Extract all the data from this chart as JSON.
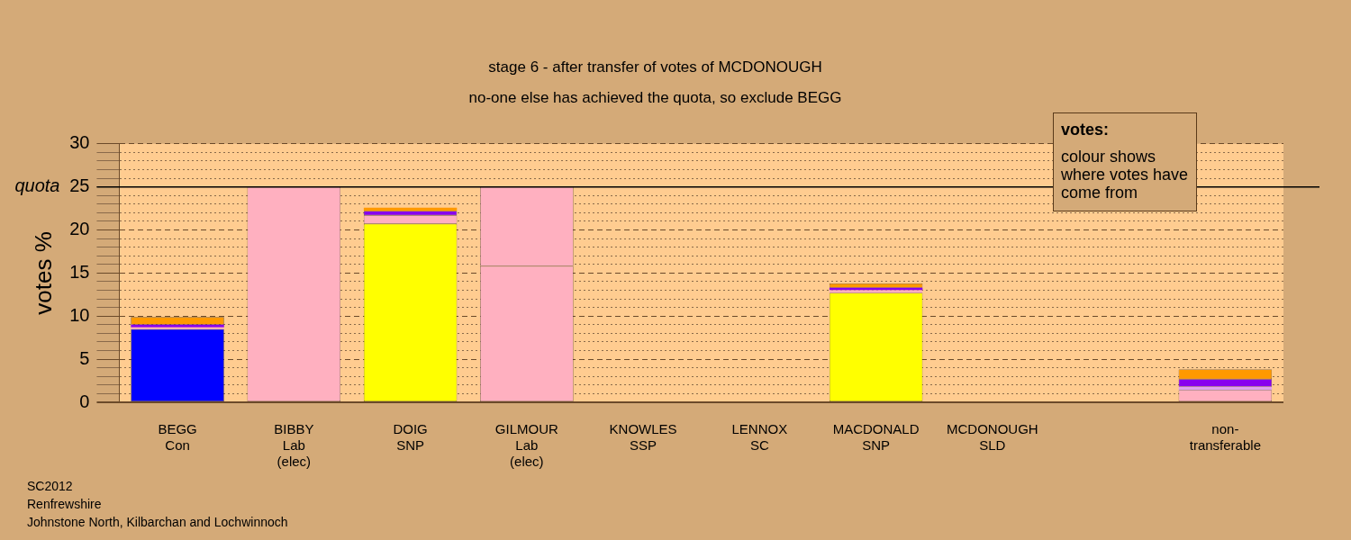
{
  "chart_data": {
    "type": "bar",
    "stacked": true,
    "title": "stage 6 - after transfer of votes of MCDONOUGH",
    "subtitle": "no-one else has achieved the quota, so exclude BEGG",
    "ylabel": "votes %",
    "categories": [
      "BEGG\nCon",
      "BIBBY\nLab\n(elec)",
      "DOIG\nSNP",
      "GILMOUR\nLab\n(elec)",
      "KNOWLES\nSSP",
      "LENNOX\nSC",
      "MACDONALD\nSNP",
      "MCDONOUGH\nSLD",
      null,
      "non-\ntransferable"
    ],
    "series": [
      {
        "color": "#0000ff",
        "values": [
          8.5,
          null,
          null,
          null,
          null,
          null,
          null,
          null,
          null,
          null
        ]
      },
      {
        "color": "#ffff00",
        "values": [
          null,
          null,
          20.7,
          null,
          null,
          null,
          12.7,
          null,
          null,
          null
        ]
      },
      {
        "color": "#ffb0c0",
        "values": [
          0.2,
          25.0,
          1.0,
          15.8,
          null,
          null,
          0.3,
          null,
          null,
          1.4
        ]
      },
      {
        "color": "#ffb0c0",
        "values": [
          null,
          null,
          null,
          9.2,
          null,
          null,
          null,
          null,
          null,
          null
        ]
      },
      {
        "color": "#e0a0f0",
        "values": [
          null,
          null,
          null,
          null,
          null,
          null,
          null,
          null,
          null,
          0.4
        ]
      },
      {
        "color": "#8800ee",
        "values": [
          0.3,
          null,
          0.5,
          null,
          null,
          null,
          0.3,
          null,
          null,
          0.9
        ]
      },
      {
        "color": "#ff9900",
        "values": [
          0.9,
          null,
          0.4,
          null,
          null,
          null,
          0.5,
          null,
          null,
          1.1
        ]
      }
    ],
    "ylim": [
      0,
      30
    ],
    "yticks": [
      0,
      {
        "value": 1,
        "label": null
      },
      {
        "value": 2,
        "label": null
      },
      {
        "value": 3,
        "label": null
      },
      {
        "value": 4,
        "label": null
      },
      5,
      {
        "value": 6,
        "label": null
      },
      {
        "value": 7,
        "label": null
      },
      {
        "value": 8,
        "label": null
      },
      {
        "value": 9,
        "label": null
      },
      10,
      {
        "value": 11,
        "label": null
      },
      {
        "value": 12,
        "label": null
      },
      {
        "value": 13,
        "label": null
      },
      {
        "value": 14,
        "label": null
      },
      15,
      {
        "value": 16,
        "label": null
      },
      {
        "value": 17,
        "label": null
      },
      {
        "value": 18,
        "label": null
      },
      {
        "value": 19,
        "label": null
      },
      20,
      {
        "value": 21,
        "label": null
      },
      {
        "value": 22,
        "label": null
      },
      {
        "value": 23,
        "label": null
      },
      {
        "value": 24,
        "label": null
      },
      25,
      {
        "value": 26,
        "label": null
      },
      {
        "value": 27,
        "label": null
      },
      {
        "value": 28,
        "label": null
      },
      {
        "value": 29,
        "label": null
      },
      30
    ],
    "ref_lines": [
      {
        "axis": "y",
        "value": 25,
        "label": "quota",
        "color": "#000000",
        "line_style": "solid"
      }
    ],
    "grid": "y",
    "legend": false,
    "annotations": [
      "votes:",
      "colour shows where votes have come from",
      "SC2012",
      "Renfrewshire",
      "Johnstone North, Kilbarchan and Lochwinnoch"
    ]
  }
}
